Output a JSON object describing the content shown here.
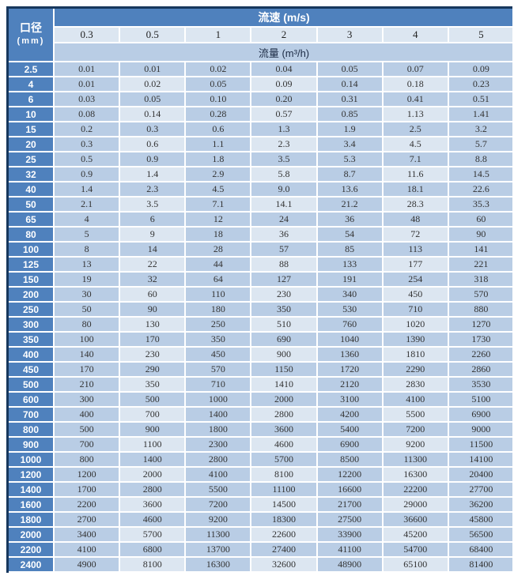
{
  "colors": {
    "outer_border": "#17375d",
    "header_bg": "#4f81bd",
    "header_text": "#ffffff",
    "cell_bg": "#b9cde5",
    "cell_bg_alt": "#dce6f1",
    "grid_gap": "#ffffff",
    "data_text": "#333333"
  },
  "table": {
    "corner": {
      "line1": "口径",
      "line2": "(mm)"
    },
    "velocity_label": "流速 (m/s)",
    "flow_label": "流量 (m³/h)",
    "velocities": [
      "0.3",
      "0.5",
      "1",
      "2",
      "3",
      "4",
      "5"
    ]
  },
  "chart_data": {
    "type": "table",
    "row_header": "口径 (mm)",
    "column_group_header": "流速 (m/s)",
    "cell_unit_header": "流量 (m³/h)",
    "columns_velocity_m_per_s": [
      "0.3",
      "0.5",
      "1",
      "2",
      "3",
      "4",
      "5"
    ],
    "rows": [
      {
        "diameter_mm": "2.5",
        "flows": [
          "0.01",
          "0.01",
          "0.02",
          "0.04",
          "0.05",
          "0.07",
          "0.09"
        ]
      },
      {
        "diameter_mm": "4",
        "flows": [
          "0.01",
          "0.02",
          "0.05",
          "0.09",
          "0.14",
          "0.18",
          "0.23"
        ]
      },
      {
        "diameter_mm": "6",
        "flows": [
          "0.03",
          "0.05",
          "0.10",
          "0.20",
          "0.31",
          "0.41",
          "0.51"
        ]
      },
      {
        "diameter_mm": "10",
        "flows": [
          "0.08",
          "0.14",
          "0.28",
          "0.57",
          "0.85",
          "1.13",
          "1.41"
        ]
      },
      {
        "diameter_mm": "15",
        "flows": [
          "0.2",
          "0.3",
          "0.6",
          "1.3",
          "1.9",
          "2.5",
          "3.2"
        ]
      },
      {
        "diameter_mm": "20",
        "flows": [
          "0.3",
          "0.6",
          "1.1",
          "2.3",
          "3.4",
          "4.5",
          "5.7"
        ]
      },
      {
        "diameter_mm": "25",
        "flows": [
          "0.5",
          "0.9",
          "1.8",
          "3.5",
          "5.3",
          "7.1",
          "8.8"
        ]
      },
      {
        "diameter_mm": "32",
        "flows": [
          "0.9",
          "1.4",
          "2.9",
          "5.8",
          "8.7",
          "11.6",
          "14.5"
        ]
      },
      {
        "diameter_mm": "40",
        "flows": [
          "1.4",
          "2.3",
          "4.5",
          "9.0",
          "13.6",
          "18.1",
          "22.6"
        ]
      },
      {
        "diameter_mm": "50",
        "flows": [
          "2.1",
          "3.5",
          "7.1",
          "14.1",
          "21.2",
          "28.3",
          "35.3"
        ]
      },
      {
        "diameter_mm": "65",
        "flows": [
          "4",
          "6",
          "12",
          "24",
          "36",
          "48",
          "60"
        ]
      },
      {
        "diameter_mm": "80",
        "flows": [
          "5",
          "9",
          "18",
          "36",
          "54",
          "72",
          "90"
        ]
      },
      {
        "diameter_mm": "100",
        "flows": [
          "8",
          "14",
          "28",
          "57",
          "85",
          "113",
          "141"
        ]
      },
      {
        "diameter_mm": "125",
        "flows": [
          "13",
          "22",
          "44",
          "88",
          "133",
          "177",
          "221"
        ]
      },
      {
        "diameter_mm": "150",
        "flows": [
          "19",
          "32",
          "64",
          "127",
          "191",
          "254",
          "318"
        ]
      },
      {
        "diameter_mm": "200",
        "flows": [
          "30",
          "60",
          "110",
          "230",
          "340",
          "450",
          "570"
        ]
      },
      {
        "diameter_mm": "250",
        "flows": [
          "50",
          "90",
          "180",
          "350",
          "530",
          "710",
          "880"
        ]
      },
      {
        "diameter_mm": "300",
        "flows": [
          "80",
          "130",
          "250",
          "510",
          "760",
          "1020",
          "1270"
        ]
      },
      {
        "diameter_mm": "350",
        "flows": [
          "100",
          "170",
          "350",
          "690",
          "1040",
          "1390",
          "1730"
        ]
      },
      {
        "diameter_mm": "400",
        "flows": [
          "140",
          "230",
          "450",
          "900",
          "1360",
          "1810",
          "2260"
        ]
      },
      {
        "diameter_mm": "450",
        "flows": [
          "170",
          "290",
          "570",
          "1150",
          "1720",
          "2290",
          "2860"
        ]
      },
      {
        "diameter_mm": "500",
        "flows": [
          "210",
          "350",
          "710",
          "1410",
          "2120",
          "2830",
          "3530"
        ]
      },
      {
        "diameter_mm": "600",
        "flows": [
          "300",
          "500",
          "1000",
          "2000",
          "3100",
          "4100",
          "5100"
        ]
      },
      {
        "diameter_mm": "700",
        "flows": [
          "400",
          "700",
          "1400",
          "2800",
          "4200",
          "5500",
          "6900"
        ]
      },
      {
        "diameter_mm": "800",
        "flows": [
          "500",
          "900",
          "1800",
          "3600",
          "5400",
          "7200",
          "9000"
        ]
      },
      {
        "diameter_mm": "900",
        "flows": [
          "700",
          "1100",
          "2300",
          "4600",
          "6900",
          "9200",
          "11500"
        ]
      },
      {
        "diameter_mm": "1000",
        "flows": [
          "800",
          "1400",
          "2800",
          "5700",
          "8500",
          "11300",
          "14100"
        ]
      },
      {
        "diameter_mm": "1200",
        "flows": [
          "1200",
          "2000",
          "4100",
          "8100",
          "12200",
          "16300",
          "20400"
        ]
      },
      {
        "diameter_mm": "1400",
        "flows": [
          "1700",
          "2800",
          "5500",
          "11100",
          "16600",
          "22200",
          "27700"
        ]
      },
      {
        "diameter_mm": "1600",
        "flows": [
          "2200",
          "3600",
          "7200",
          "14500",
          "21700",
          "29000",
          "36200"
        ]
      },
      {
        "diameter_mm": "1800",
        "flows": [
          "2700",
          "4600",
          "9200",
          "18300",
          "27500",
          "36600",
          "45800"
        ]
      },
      {
        "diameter_mm": "2000",
        "flows": [
          "3400",
          "5700",
          "11300",
          "22600",
          "33900",
          "45200",
          "56500"
        ]
      },
      {
        "diameter_mm": "2200",
        "flows": [
          "4100",
          "6800",
          "13700",
          "27400",
          "41100",
          "54700",
          "68400"
        ]
      },
      {
        "diameter_mm": "2400",
        "flows": [
          "4900",
          "8100",
          "16300",
          "32600",
          "48900",
          "65100",
          "81400"
        ]
      }
    ]
  }
}
